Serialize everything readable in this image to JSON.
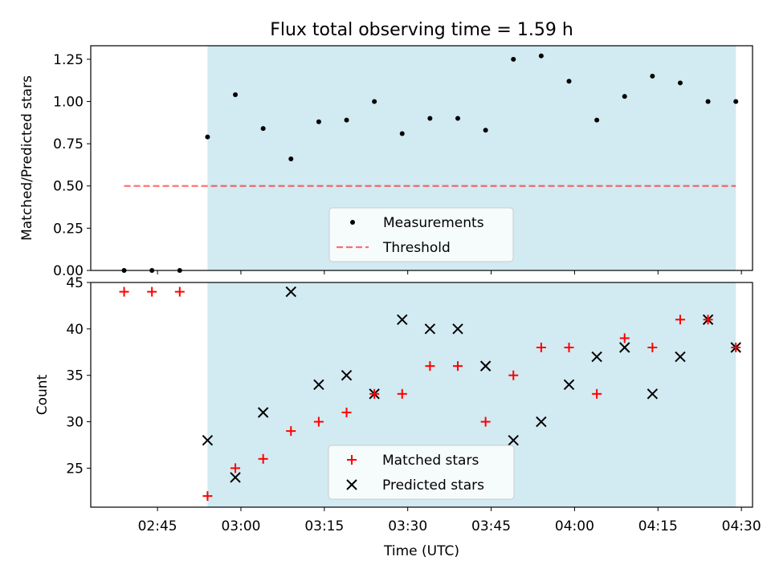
{
  "title": "Flux total observing time = 1.59 h",
  "colors": {
    "shade": "#add8e6",
    "measurement": "#000000",
    "threshold": "#ff0000",
    "matched": "#ff0000",
    "predicted": "#000000"
  },
  "chart_data": [
    {
      "type": "scatter",
      "ylabel": "Matched/Predicted stars",
      "xlim": [
        "02:33",
        "04:32"
      ],
      "ylim": [
        0,
        1.33
      ],
      "yticks": [
        0,
        0.25,
        0.5,
        0.75,
        1.0,
        1.25
      ],
      "ytick_labels": [
        "0.00",
        "0.25",
        "0.50",
        "0.75",
        "1.00",
        "1.25"
      ],
      "shaded_region": [
        "02:54",
        "04:29"
      ],
      "legend_position": "lower center",
      "legend": [
        {
          "label": "Measurements",
          "marker": "dot",
          "color": "#000000"
        },
        {
          "label": "Threshold",
          "marker": "dashed-line",
          "color": "#ff0000"
        }
      ],
      "threshold": {
        "name": "Threshold",
        "y": 0.5,
        "x_range": [
          "02:39",
          "04:29"
        ]
      },
      "series": [
        {
          "name": "Measurements",
          "x": [
            "02:39",
            "02:44",
            "02:49",
            "02:54",
            "02:59",
            "03:04",
            "03:09",
            "03:14",
            "03:19",
            "03:24",
            "03:29",
            "03:34",
            "03:39",
            "03:44",
            "03:49",
            "03:54",
            "03:59",
            "04:04",
            "04:09",
            "04:14",
            "04:19",
            "04:24",
            "04:29"
          ],
          "y": [
            0,
            0,
            0,
            0.79,
            1.04,
            0.84,
            0.66,
            0.88,
            0.89,
            1.0,
            0.81,
            0.9,
            0.9,
            0.83,
            1.25,
            1.27,
            1.12,
            0.89,
            1.03,
            1.15,
            1.11,
            1.0,
            1.0
          ]
        }
      ]
    },
    {
      "type": "scatter",
      "xlabel": "Time (UTC)",
      "ylabel": "Count",
      "xlim": [
        "02:33",
        "04:32"
      ],
      "ylim": [
        20.8,
        45
      ],
      "yticks": [
        25,
        30,
        35,
        40,
        45
      ],
      "ytick_labels": [
        "25",
        "30",
        "35",
        "40",
        "45"
      ],
      "xticks": [
        "02:45",
        "03:00",
        "03:15",
        "03:30",
        "03:45",
        "04:00",
        "04:15",
        "04:30"
      ],
      "shaded_region": [
        "02:54",
        "04:29"
      ],
      "legend_position": "lower center",
      "legend": [
        {
          "label": "Matched stars",
          "marker": "plus",
          "color": "#ff0000"
        },
        {
          "label": "Predicted stars",
          "marker": "x",
          "color": "#000000"
        }
      ],
      "x": [
        "02:39",
        "02:44",
        "02:49",
        "02:54",
        "02:59",
        "03:04",
        "03:09",
        "03:14",
        "03:19",
        "03:24",
        "03:29",
        "03:34",
        "03:39",
        "03:44",
        "03:49",
        "03:54",
        "03:59",
        "04:04",
        "04:09",
        "04:14",
        "04:19",
        "04:24",
        "04:29"
      ],
      "series": [
        {
          "name": "Matched stars",
          "values": [
            44,
            44,
            44,
            22,
            25,
            26,
            29,
            30,
            31,
            33,
            33,
            36,
            36,
            30,
            35,
            38,
            38,
            33,
            39,
            38,
            41,
            41,
            38
          ]
        },
        {
          "name": "Predicted stars",
          "values": [
            null,
            null,
            null,
            28,
            24,
            31,
            44,
            34,
            35,
            33,
            41,
            40,
            40,
            36,
            28,
            30,
            34,
            37,
            38,
            33,
            37,
            41,
            38
          ]
        }
      ]
    }
  ]
}
